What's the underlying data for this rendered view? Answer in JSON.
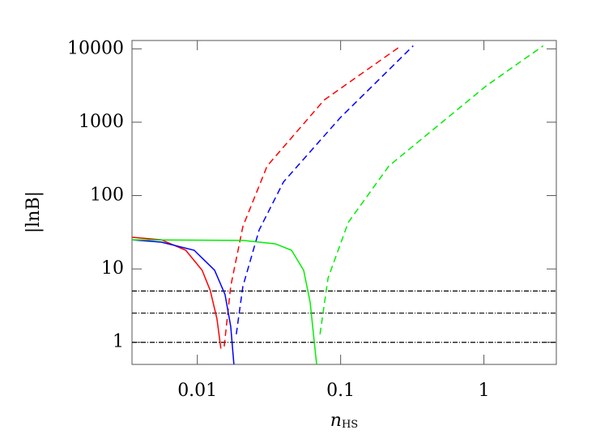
{
  "chart_data": {
    "type": "line",
    "xlabel": "n",
    "xlabel_sub": "HS",
    "ylabel": "|lnB|",
    "xscale": "log",
    "yscale": "log",
    "xlim": [
      0.0035,
      3.2
    ],
    "ylim": [
      0.5,
      13000
    ],
    "xticks": [
      0.01,
      0.1,
      1
    ],
    "yticks": [
      1,
      10,
      100,
      1000,
      10000
    ],
    "reference_lines": [
      1,
      2.5,
      5
    ],
    "reference_color": "#000000",
    "series": [
      {
        "color": "#ff0000",
        "dashed": false,
        "x": [
          0.0035,
          0.0056,
          0.0083,
          0.0108,
          0.0123,
          0.0137,
          0.0146
        ],
        "values": [
          27,
          25,
          18,
          9.6,
          5.1,
          2.1,
          0.82
        ]
      },
      {
        "color": "#ff0000",
        "dashed": true,
        "x": [
          0.0154,
          0.0171,
          0.0208,
          0.0307,
          0.0766,
          0.264
        ],
        "values": [
          0.88,
          5.8,
          38,
          253,
          2000,
          11000
        ]
      },
      {
        "color": "#0000ff",
        "dashed": false,
        "x": [
          0.0035,
          0.0056,
          0.0095,
          0.0132,
          0.0156,
          0.0171,
          0.018
        ],
        "values": [
          25,
          23.2,
          18,
          9.6,
          4.5,
          1.65,
          0.5
        ]
      },
      {
        "color": "#0000ff",
        "dashed": true,
        "x": [
          0.0187,
          0.0208,
          0.027,
          0.0399,
          0.0993,
          0.321
        ],
        "values": [
          1.29,
          5.8,
          34,
          153,
          1150,
          11000
        ]
      },
      {
        "color": "#00ee00",
        "dashed": false,
        "x": [
          0.0035,
          0.0208,
          0.035,
          0.0454,
          0.0552,
          0.0613,
          0.0655,
          0.068
        ],
        "values": [
          25,
          24.5,
          22,
          18,
          9.6,
          3.5,
          1,
          0.5
        ]
      },
      {
        "color": "#00ee00",
        "dashed": true,
        "x": [
          0.0718,
          0.0817,
          0.113,
          0.217,
          1.04,
          2.59
        ],
        "values": [
          1.29,
          7.5,
          43,
          253,
          3140,
          11000
        ]
      }
    ]
  }
}
